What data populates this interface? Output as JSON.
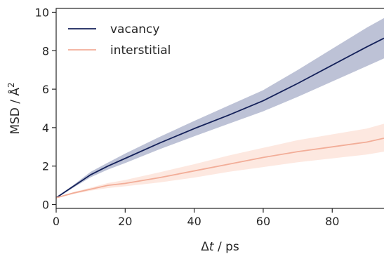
{
  "chart_data": {
    "type": "line",
    "title": "",
    "xlabel_symbol": "Δ",
    "xlabel_var": "t",
    "xlabel_unit": " / ps",
    "ylabel": "MSD / Å",
    "ylabel_sup": "2",
    "xlim": [
      0,
      95
    ],
    "ylim": [
      -0.2,
      10.2
    ],
    "xticks": [
      0,
      20,
      40,
      60,
      80
    ],
    "yticks": [
      0,
      2,
      4,
      6,
      8,
      10
    ],
    "grid": false,
    "legend_position": "top-left",
    "x": [
      0,
      5,
      10,
      15,
      20,
      30,
      40,
      50,
      60,
      70,
      80,
      90,
      95
    ],
    "series": [
      {
        "name": "vacancy",
        "color": "#14215a",
        "band_color": "#8790b5",
        "values": [
          0.35,
          0.95,
          1.55,
          2.0,
          2.4,
          3.2,
          3.95,
          4.65,
          5.4,
          6.3,
          7.25,
          8.2,
          8.65
        ],
        "lower": [
          0.32,
          0.88,
          1.42,
          1.82,
          2.16,
          2.88,
          3.55,
          4.2,
          4.85,
          5.6,
          6.4,
          7.2,
          7.6
        ],
        "upper": [
          0.38,
          1.02,
          1.7,
          2.18,
          2.65,
          3.52,
          4.35,
          5.15,
          5.95,
          7.0,
          8.1,
          9.2,
          9.7
        ]
      },
      {
        "name": "interstitial",
        "color": "#f2ad98",
        "band_color": "#fbd5c7",
        "values": [
          0.35,
          0.6,
          0.8,
          1.0,
          1.1,
          1.4,
          1.75,
          2.1,
          2.45,
          2.75,
          3.0,
          3.25,
          3.45
        ],
        "lower": [
          0.33,
          0.55,
          0.72,
          0.86,
          0.95,
          1.15,
          1.4,
          1.7,
          1.95,
          2.2,
          2.4,
          2.6,
          2.75
        ],
        "upper": [
          0.37,
          0.65,
          0.88,
          1.12,
          1.28,
          1.68,
          2.1,
          2.55,
          2.95,
          3.35,
          3.65,
          3.95,
          4.2
        ]
      }
    ]
  }
}
